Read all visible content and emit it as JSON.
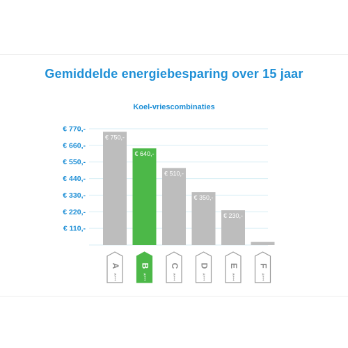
{
  "title": "Gemiddelde energiebesparing over 15 jaar",
  "subtitle": "Koel-vriescombinaties",
  "colors": {
    "accent": "#1e8fd6",
    "bar_default": "#bdbdbd",
    "bar_highlight": "#4cb848",
    "grid": "#d7eef5",
    "tag_outline": "#9a9a9a"
  },
  "chart_data": {
    "type": "bar",
    "title": "Gemiddelde energiebesparing over 15 jaar",
    "subtitle": "Koel-vriescombinaties",
    "categories": [
      "A",
      "B",
      "C",
      "D",
      "E",
      "F"
    ],
    "values": [
      750,
      640,
      510,
      350,
      230,
      20
    ],
    "value_labels": [
      "€ 750,-",
      "€ 640,-",
      "€ 510,-",
      "€ 350,-",
      "€ 230,-",
      ""
    ],
    "highlight_index": 1,
    "category_sublabel": "A+++",
    "yticks": [
      110,
      220,
      330,
      440,
      550,
      660,
      770
    ],
    "ytick_labels": [
      "€ 110,-",
      "€ 220,-",
      "€ 330,-",
      "€ 440,-",
      "€ 550,-",
      "€ 660,-",
      "€ 770,-"
    ],
    "ylim": [
      0,
      770
    ],
    "grid": true,
    "legend": "none"
  }
}
